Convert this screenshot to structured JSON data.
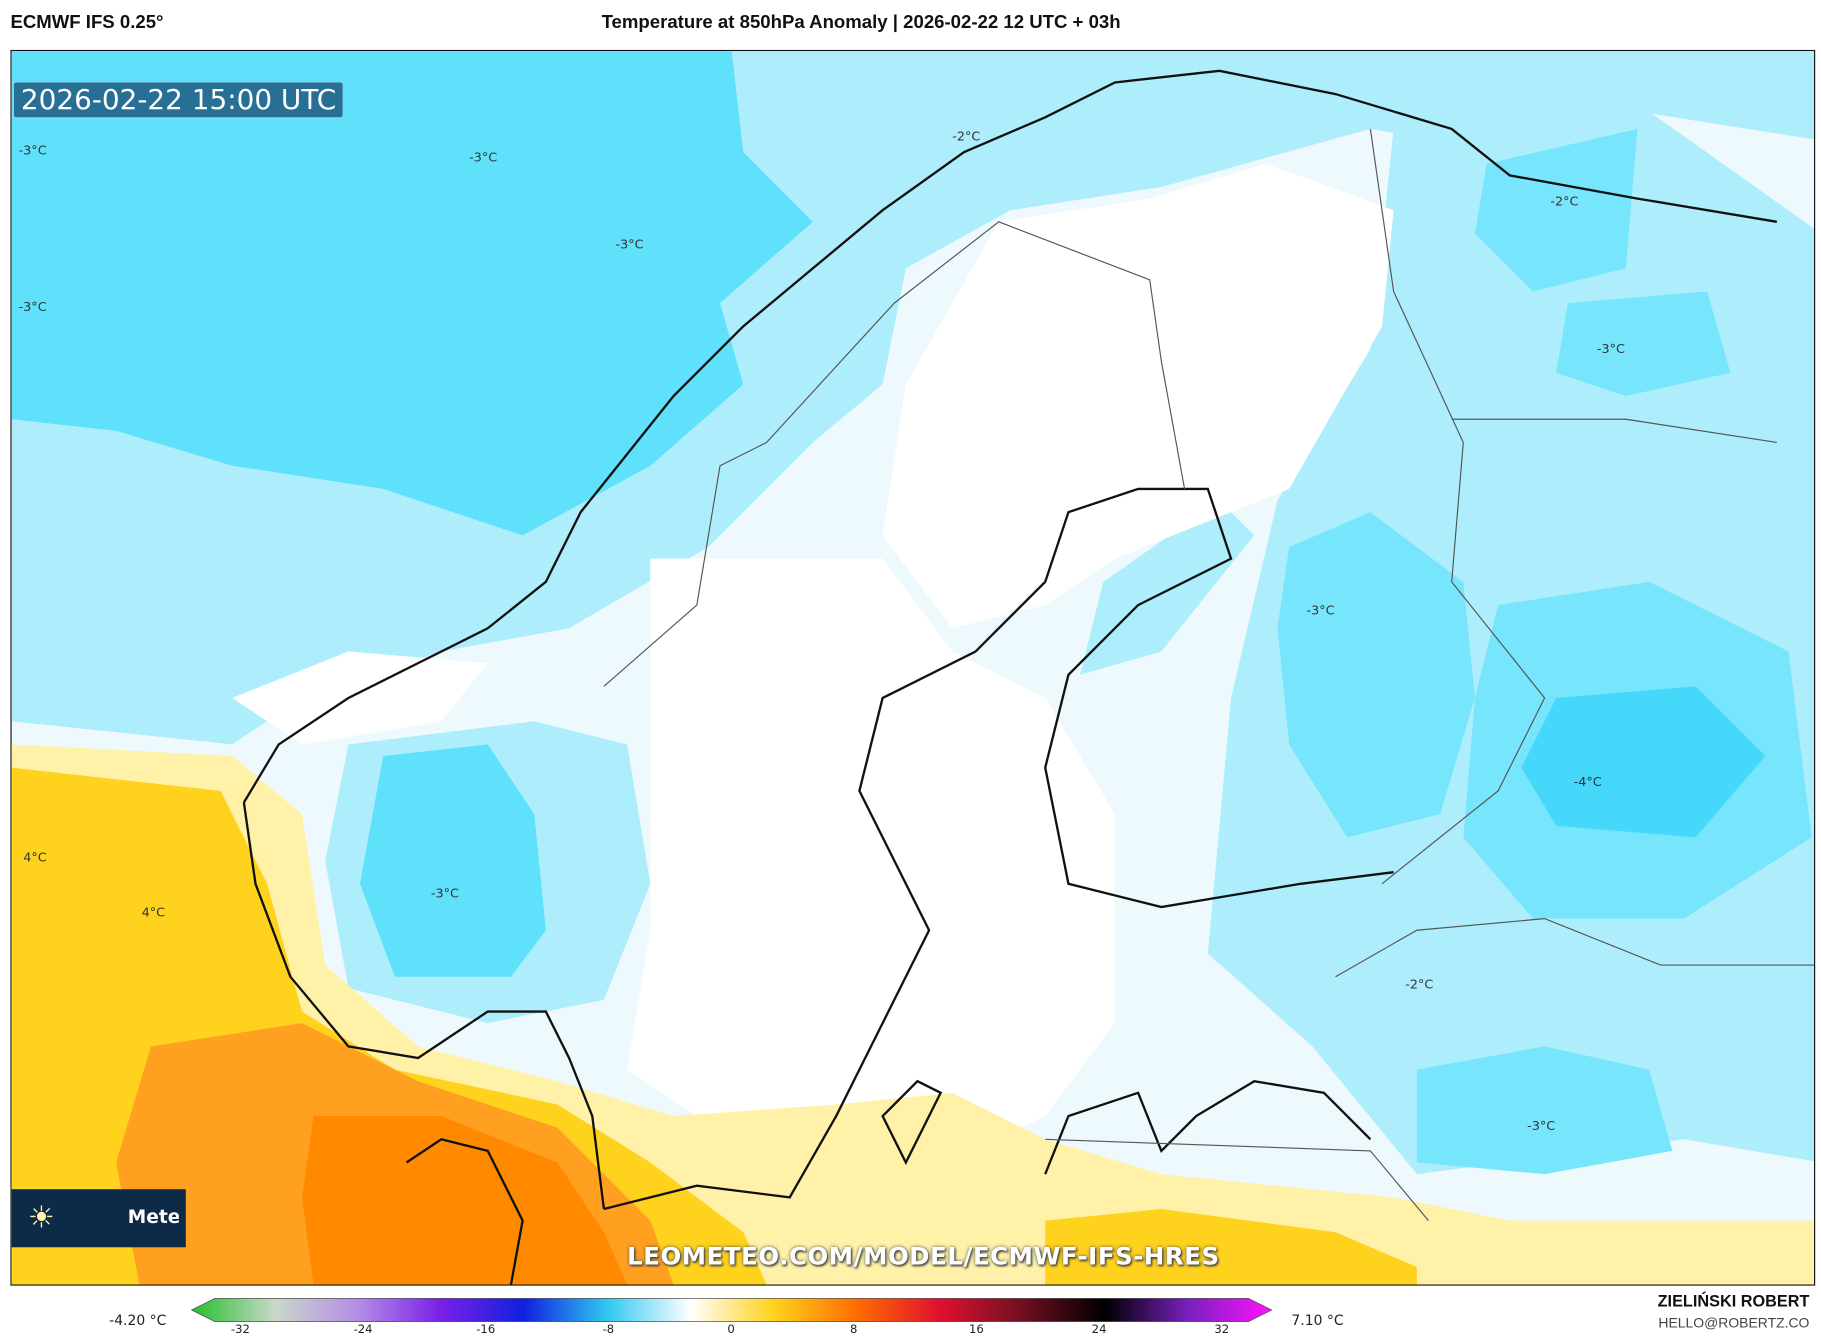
{
  "header": {
    "model": "ECMWF IFS 0.25°",
    "title": "Temperature at 850hPa Anomaly | 2026-02-22 12 UTC + 03h"
  },
  "map": {
    "timestamp": "2026-02-22 15:00 UTC",
    "watermark_url": "LEOMETEO.COM/MODEL/ECMWF-IFS-HRES",
    "logo_text": "Meteo",
    "logo_icon": "sun-icon",
    "contour_labels": [
      "-3°C",
      "-3°C",
      "-3°C",
      "-3°C",
      "-2°C",
      "-2°C",
      "-3°C",
      "-3°C",
      "-3°C",
      "-4°C",
      "-2°C",
      "-3°C",
      "4°C",
      "4°C"
    ]
  },
  "colorbar": {
    "min_label": "-4.20 °C",
    "max_label": "7.10 °C",
    "ticks": [
      "-32",
      "-24",
      "-16",
      "-8",
      "0",
      "8",
      "16",
      "24",
      "32"
    ],
    "colors": [
      "#22c02a",
      "#c8d8c8",
      "#b48ce6",
      "#7a20e6",
      "#1020e0",
      "#30c8f0",
      "#ffffff",
      "#ffd21e",
      "#ff6e00",
      "#e01030",
      "#701020",
      "#000000",
      "#7a20c0",
      "#ff10ff"
    ]
  },
  "footer": {
    "author": "ZIELIŃSKI ROBERT",
    "email": "HELLO@ROBERTZ.CO"
  }
}
